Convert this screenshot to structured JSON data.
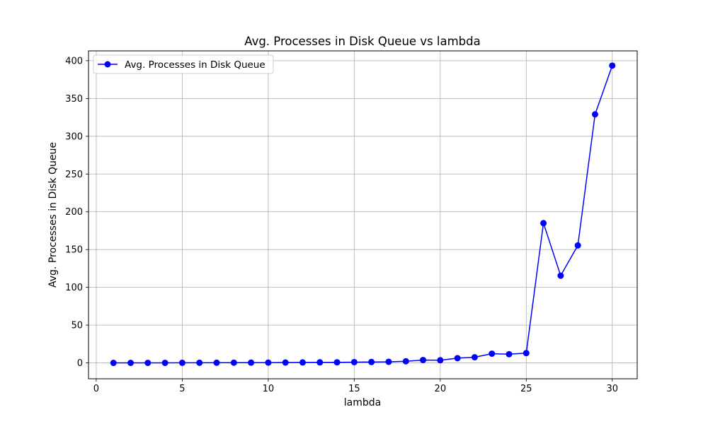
{
  "chart_data": {
    "type": "line",
    "title": "Avg. Processes in Disk Queue vs lambda",
    "xlabel": "lambda",
    "ylabel": "Avg. Processes in Disk Queue",
    "xlim": [
      -0.45,
      31.45
    ],
    "ylim": [
      -21,
      413
    ],
    "xticks": [
      0,
      5,
      10,
      15,
      20,
      25,
      30
    ],
    "yticks": [
      0,
      50,
      100,
      150,
      200,
      250,
      300,
      350,
      400
    ],
    "grid": true,
    "legend_position": "top-left",
    "series": [
      {
        "name": "Avg. Processes in Disk Queue",
        "color": "#0000ff",
        "marker": "circle",
        "x": [
          1,
          2,
          3,
          4,
          5,
          6,
          7,
          8,
          9,
          10,
          11,
          12,
          13,
          14,
          15,
          16,
          17,
          18,
          19,
          20,
          21,
          22,
          23,
          24,
          25,
          26,
          27,
          28,
          29,
          30
        ],
        "y": [
          0.02,
          0.05,
          0.08,
          0.1,
          0.15,
          0.2,
          0.25,
          0.3,
          0.35,
          0.4,
          0.5,
          0.6,
          0.7,
          0.8,
          1.0,
          1.2,
          1.5,
          2.2,
          3.8,
          3.5,
          6.3,
          7.5,
          12.2,
          11.5,
          13.0,
          185.0,
          115.5,
          155.5,
          329.0,
          393.5
        ]
      }
    ]
  }
}
